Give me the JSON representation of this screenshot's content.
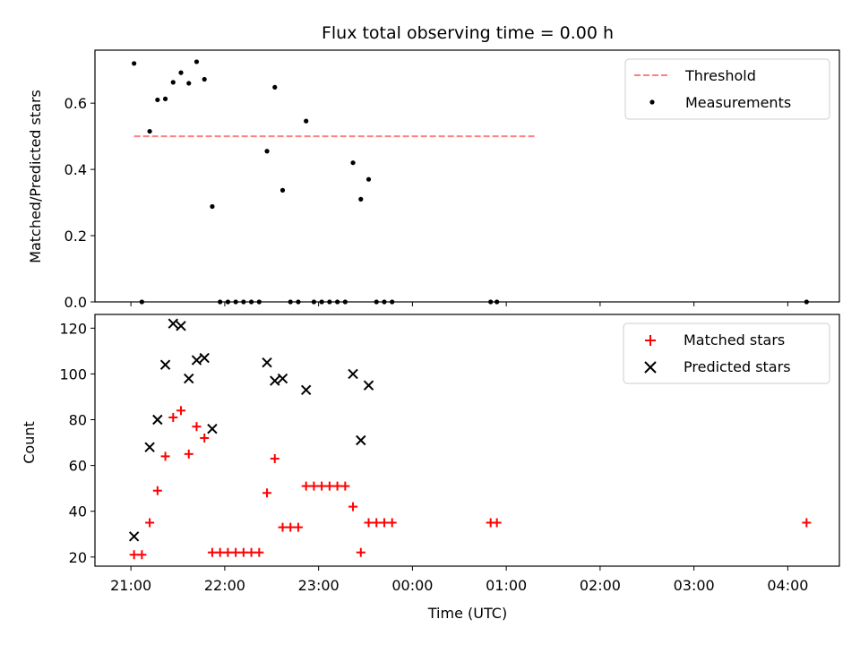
{
  "chart_data": [
    {
      "type": "scatter",
      "title": "Flux total observing time = 0.00 h",
      "xlabel": "",
      "ylabel": "Matched/Predicted stars",
      "x_ticks": [
        "21:00",
        "22:00",
        "23:00",
        "00:00",
        "01:00",
        "02:00",
        "03:00",
        "04:00"
      ],
      "y_ticks": [
        "0.0",
        "0.2",
        "0.4",
        "0.6"
      ],
      "ylim": [
        0,
        0.76
      ],
      "legend_position": "top-right",
      "threshold": {
        "name": "Threshold",
        "value": 0.5,
        "x": [
          "21:02",
          "25:18"
        ],
        "color": "#ff7f7f",
        "style": "dashed"
      },
      "series": [
        {
          "name": "Measurements",
          "color": "#000000",
          "marker": "dot",
          "points": [
            [
              "21:02",
              0.72
            ],
            [
              "21:07",
              0.0
            ],
            [
              "21:12",
              0.515
            ],
            [
              "21:17",
              0.61
            ],
            [
              "21:22",
              0.613
            ],
            [
              "21:27",
              0.663
            ],
            [
              "21:32",
              0.692
            ],
            [
              "21:37",
              0.66
            ],
            [
              "21:42",
              0.725
            ],
            [
              "21:47",
              0.672
            ],
            [
              "21:52",
              0.288
            ],
            [
              "21:57",
              0.0
            ],
            [
              "22:02",
              0.0
            ],
            [
              "22:07",
              0.0
            ],
            [
              "22:12",
              0.0
            ],
            [
              "22:17",
              0.0
            ],
            [
              "22:22",
              0.0
            ],
            [
              "22:27",
              0.455
            ],
            [
              "22:32",
              0.648
            ],
            [
              "22:37",
              0.337
            ],
            [
              "22:42",
              0.0
            ],
            [
              "22:47",
              0.0
            ],
            [
              "22:52",
              0.546
            ],
            [
              "22:57",
              0.0
            ],
            [
              "23:02",
              0.0
            ],
            [
              "23:07",
              0.0
            ],
            [
              "23:12",
              0.0
            ],
            [
              "23:17",
              0.0
            ],
            [
              "23:22",
              0.42
            ],
            [
              "23:27",
              0.31
            ],
            [
              "23:32",
              0.37
            ],
            [
              "23:37",
              0.0
            ],
            [
              "23:42",
              0.0
            ],
            [
              "23:47",
              0.0
            ],
            [
              "24:50",
              0.0
            ],
            [
              "24:54",
              0.0
            ],
            [
              "28:12",
              0.0
            ]
          ]
        }
      ]
    },
    {
      "type": "scatter",
      "title": "",
      "xlabel": "Time (UTC)",
      "ylabel": "Count",
      "x_ticks": [
        "21:00",
        "22:00",
        "23:00",
        "00:00",
        "01:00",
        "02:00",
        "03:00",
        "04:00"
      ],
      "y_ticks": [
        "20",
        "40",
        "60",
        "80",
        "100",
        "120"
      ],
      "ylim": [
        16,
        126
      ],
      "legend_position": "top-right",
      "series": [
        {
          "name": "Matched stars",
          "color": "#ff0000",
          "marker": "plus",
          "points": [
            [
              "21:02",
              21
            ],
            [
              "21:07",
              21
            ],
            [
              "21:12",
              35
            ],
            [
              "21:17",
              49
            ],
            [
              "21:22",
              64
            ],
            [
              "21:27",
              81
            ],
            [
              "21:32",
              84
            ],
            [
              "21:37",
              65
            ],
            [
              "21:42",
              77
            ],
            [
              "21:47",
              72
            ],
            [
              "21:52",
              22
            ],
            [
              "21:57",
              22
            ],
            [
              "22:02",
              22
            ],
            [
              "22:07",
              22
            ],
            [
              "22:12",
              22
            ],
            [
              "22:17",
              22
            ],
            [
              "22:22",
              22
            ],
            [
              "22:27",
              48
            ],
            [
              "22:32",
              63
            ],
            [
              "22:37",
              33
            ],
            [
              "22:42",
              33
            ],
            [
              "22:47",
              33
            ],
            [
              "22:52",
              51
            ],
            [
              "22:57",
              51
            ],
            [
              "23:02",
              51
            ],
            [
              "23:07",
              51
            ],
            [
              "23:12",
              51
            ],
            [
              "23:17",
              51
            ],
            [
              "23:22",
              42
            ],
            [
              "23:27",
              22
            ],
            [
              "23:32",
              35
            ],
            [
              "23:37",
              35
            ],
            [
              "23:42",
              35
            ],
            [
              "23:47",
              35
            ],
            [
              "24:50",
              35
            ],
            [
              "24:54",
              35
            ],
            [
              "28:12",
              35
            ]
          ]
        },
        {
          "name": "Predicted stars",
          "color": "#000000",
          "marker": "x",
          "points": [
            [
              "21:02",
              29
            ],
            [
              "21:12",
              68
            ],
            [
              "21:17",
              80
            ],
            [
              "21:22",
              104
            ],
            [
              "21:27",
              122
            ],
            [
              "21:32",
              121
            ],
            [
              "21:37",
              98
            ],
            [
              "21:42",
              106
            ],
            [
              "21:47",
              107
            ],
            [
              "21:52",
              76
            ],
            [
              "22:27",
              105
            ],
            [
              "22:32",
              97
            ],
            [
              "22:37",
              98
            ],
            [
              "22:52",
              93
            ],
            [
              "23:22",
              100
            ],
            [
              "23:27",
              71
            ],
            [
              "23:32",
              95
            ]
          ]
        }
      ]
    }
  ]
}
